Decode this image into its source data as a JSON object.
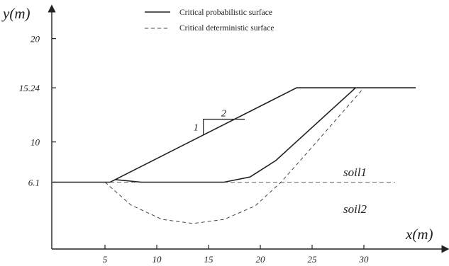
{
  "axes": {
    "x_label": "x(m)",
    "y_label": "y(m)",
    "x_ticks": [
      {
        "value": 5,
        "label": "5"
      },
      {
        "value": 10,
        "label": "10"
      },
      {
        "value": 15,
        "label": "15"
      },
      {
        "value": 20,
        "label": "20"
      },
      {
        "value": 25,
        "label": "25"
      },
      {
        "value": 30,
        "label": "30"
      }
    ],
    "y_ticks": [
      {
        "value": 6.1,
        "label": "6.1"
      },
      {
        "value": 10,
        "label": "10"
      },
      {
        "value": 15.24,
        "label": "15.24"
      },
      {
        "value": 20,
        "label": "20"
      }
    ]
  },
  "legend": {
    "solid_label": "Critical probabilistic surface",
    "dashed_label": "Critical deterministic surface"
  },
  "slope_ratio": {
    "vertical": "1",
    "horizontal": "2"
  },
  "layers": {
    "upper": "soil1",
    "lower": "soil2"
  },
  "geometry": {
    "slope_surface": [
      [
        0,
        6.1
      ],
      [
        5.5,
        6.1
      ],
      [
        23.5,
        15.24
      ],
      [
        35,
        15.24
      ]
    ],
    "soil_boundary": [
      [
        0,
        6.1
      ],
      [
        33,
        6.1
      ]
    ],
    "probabilistic_surface": [
      [
        6,
        6.35
      ],
      [
        8.5,
        6.1
      ],
      [
        16.5,
        6.1
      ],
      [
        19,
        6.6
      ],
      [
        21.5,
        8.2
      ],
      [
        29.2,
        15.24
      ]
    ],
    "deterministic_surface": [
      [
        5,
        6.1
      ],
      [
        7.5,
        3.9
      ],
      [
        10.5,
        2.5
      ],
      [
        13.5,
        2.1
      ],
      [
        16.5,
        2.5
      ],
      [
        19.5,
        3.8
      ],
      [
        22,
        6.1
      ],
      [
        25,
        9.5
      ],
      [
        30,
        15.24
      ]
    ],
    "ratio_triangle": {
      "corner": [
        14.5,
        10.7
      ],
      "height": 1.5,
      "length": 4
    }
  }
}
